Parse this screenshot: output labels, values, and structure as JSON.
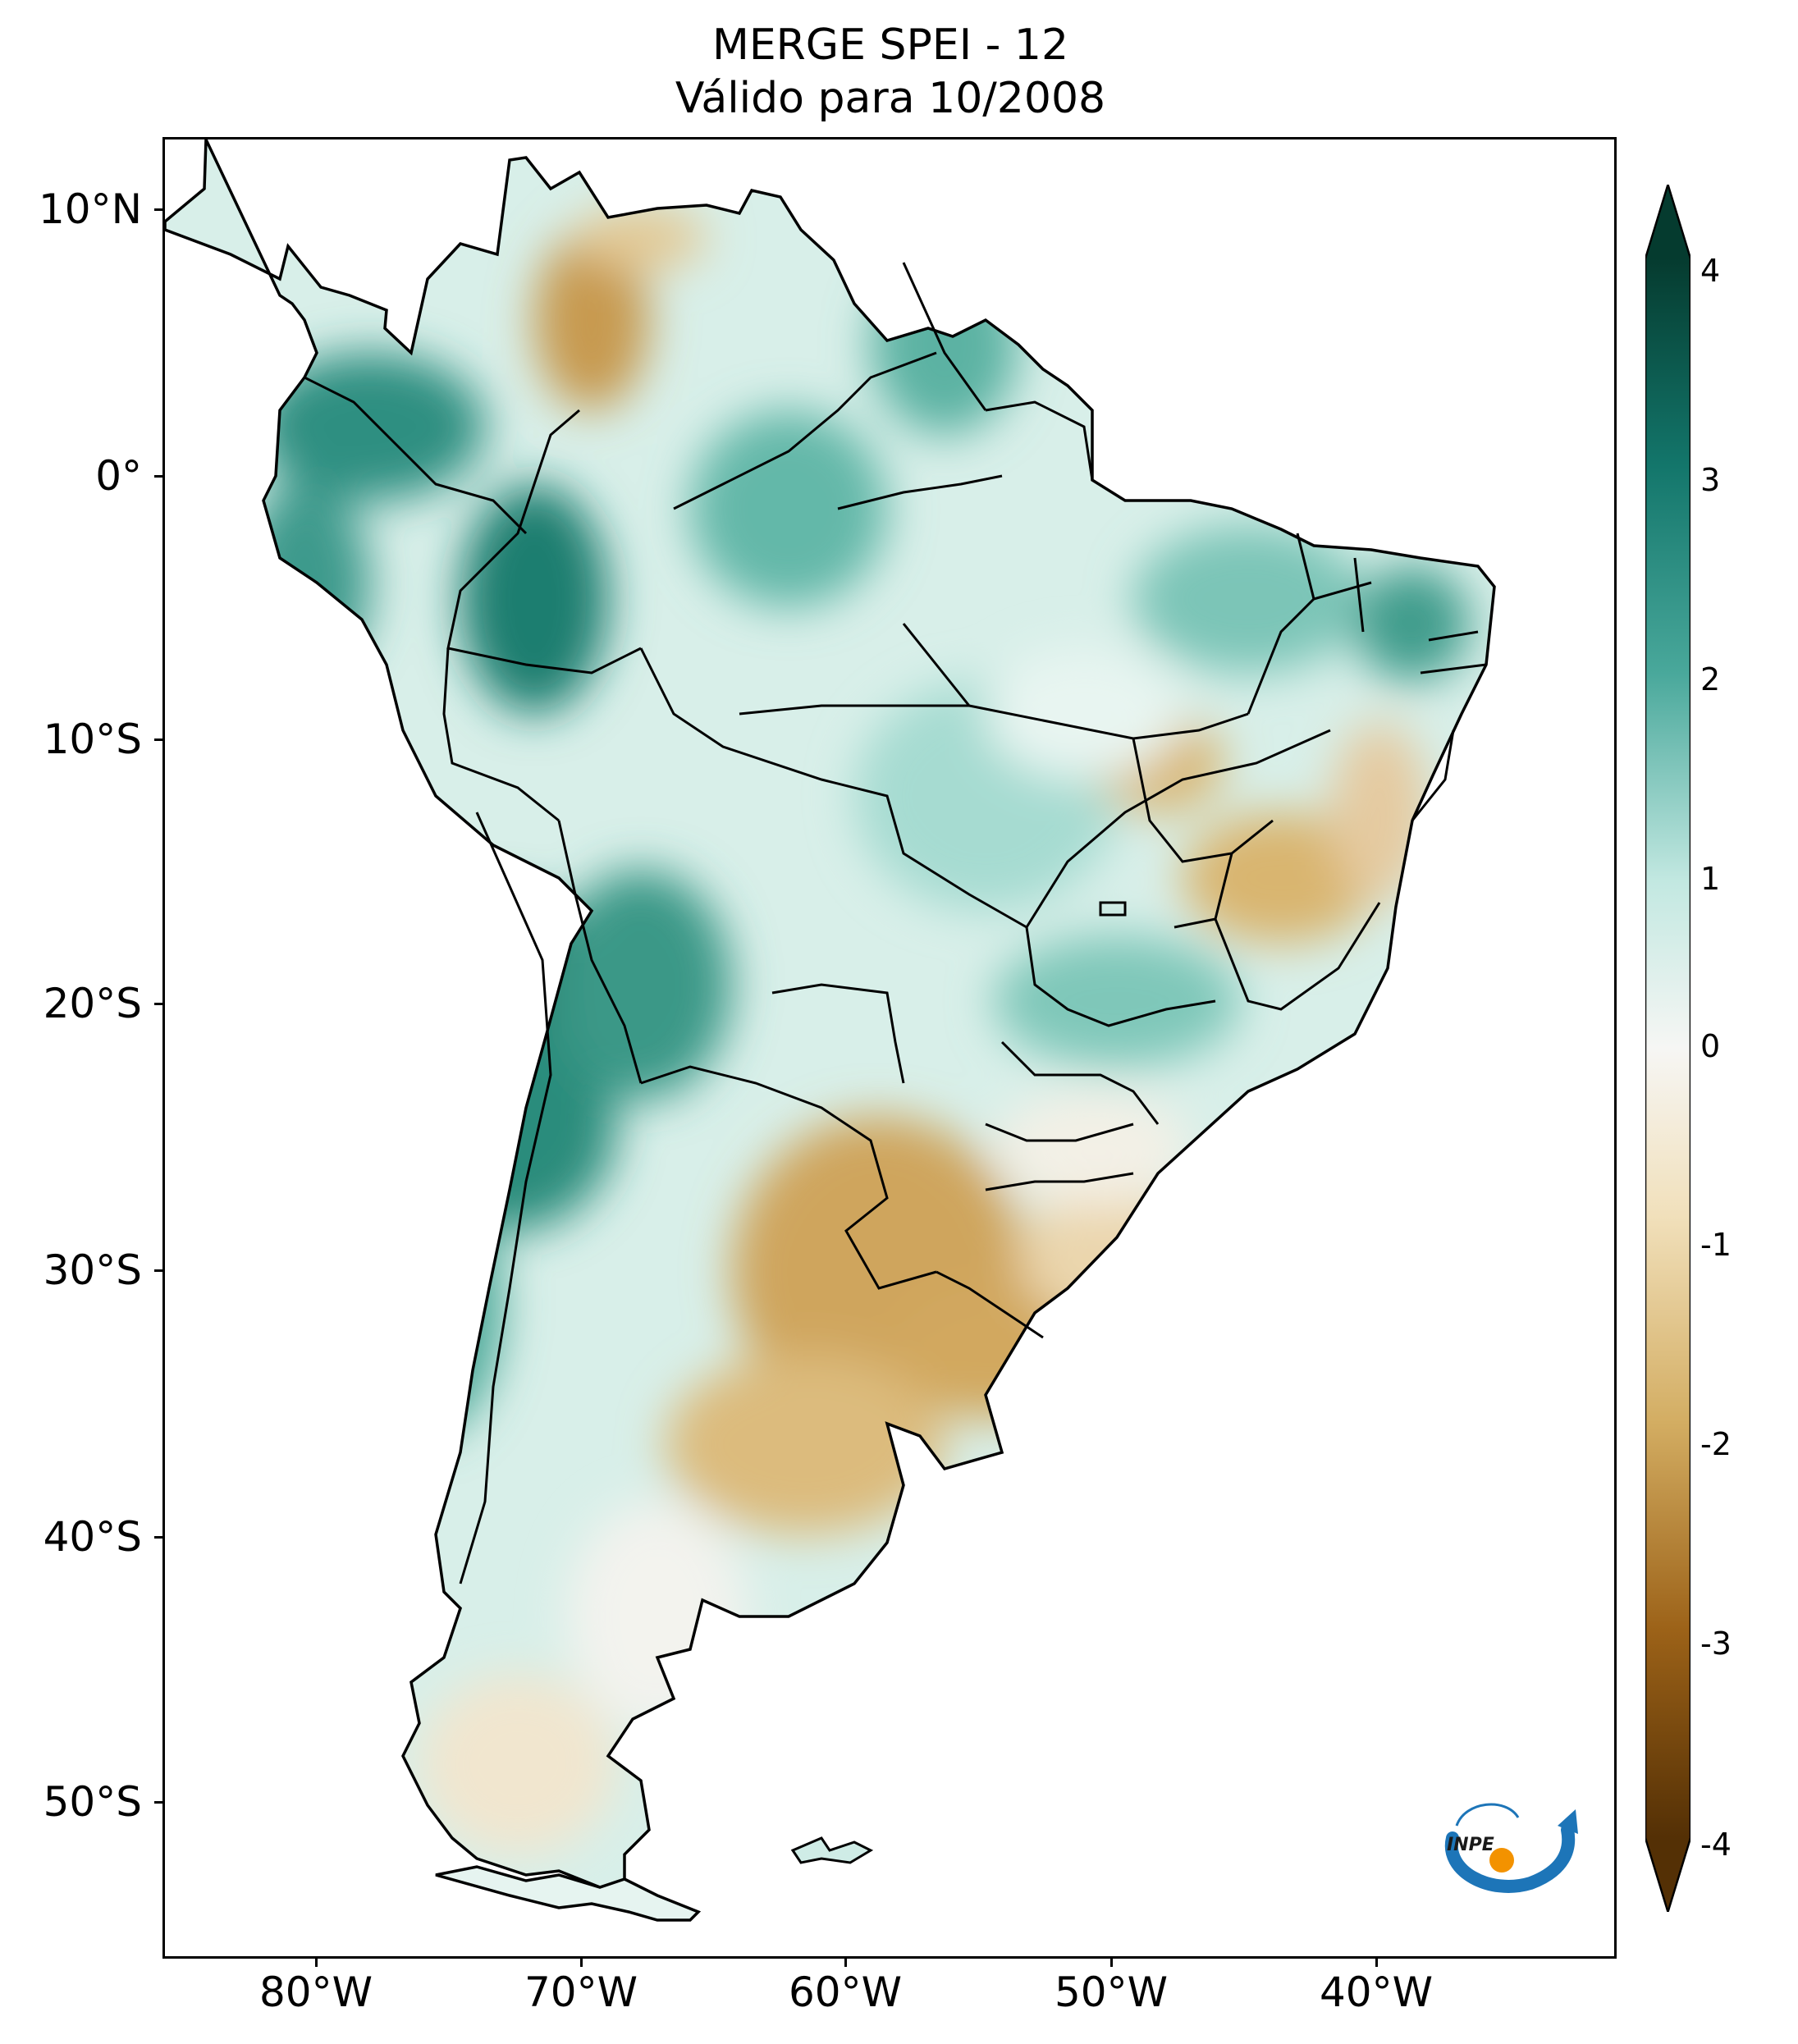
{
  "title": {
    "line1": "MERGE   SPEI - 12",
    "line2": "Válido para 10/2008"
  },
  "axes": {
    "lat_labels": [
      "10°N",
      "0°",
      "10°S",
      "20°S",
      "30°S",
      "40°S",
      "50°S"
    ],
    "lon_labels": [
      "80°W",
      "70°W",
      "60°W",
      "50°W",
      "40°W"
    ],
    "lat_values": [
      10,
      0,
      -10,
      -20,
      -30,
      -40,
      -50
    ],
    "lon_values": [
      -80,
      -70,
      -60,
      -50,
      -40
    ],
    "lon_range": [
      -85,
      -29
    ],
    "lat_range": [
      -56,
      13
    ]
  },
  "colorbar": {
    "labels": [
      "4",
      "3",
      "2",
      "1",
      "0",
      "-1",
      "-2",
      "-3",
      "-4"
    ],
    "values": [
      4,
      3,
      2,
      1,
      0,
      -1,
      -2,
      -3,
      -4
    ],
    "colors": {
      "4": "#053b2f",
      "3": "#13766b",
      "2": "#49a89b",
      "1": "#c2e8e1",
      "0": "#f6f6f4",
      "-1": "#f1e0bb",
      "-2": "#d3ad62",
      "-3": "#9c6218",
      "-4": "#543005"
    },
    "extend": "both"
  },
  "map": {
    "variable": "SPEI-12",
    "land_wet": "#8fd0c5",
    "land_dry": "#d9b56f",
    "border_color": "#000000"
  },
  "logo": {
    "text": "INPE",
    "blue": "#1d75b8",
    "orange": "#f39200"
  }
}
